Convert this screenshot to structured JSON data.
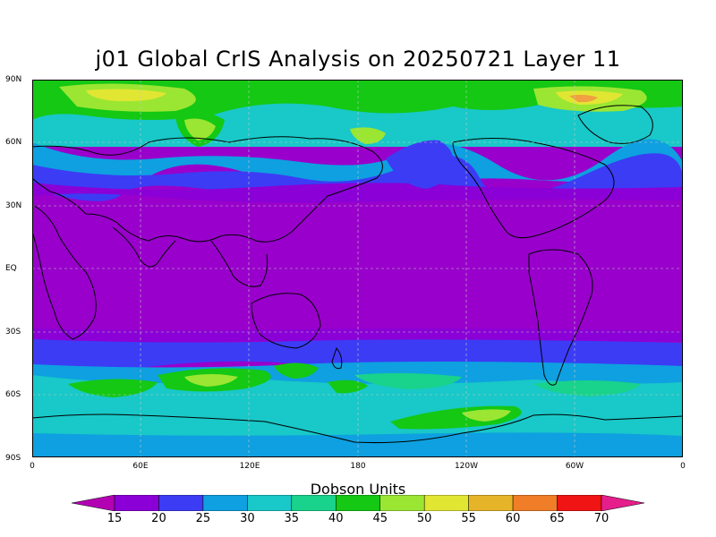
{
  "title": "j01 Global CrIS Analysis on 20250721 Layer 11",
  "lat_labels": [
    "90N",
    "60N",
    "30N",
    "EQ",
    "30S",
    "60S",
    "90S"
  ],
  "lon_labels": [
    "0",
    "60E",
    "120E",
    "180",
    "120W",
    "60W",
    "0"
  ],
  "colorbar": {
    "title": "Dobson Units",
    "ticks": [
      "15",
      "20",
      "25",
      "30",
      "35",
      "40",
      "45",
      "50",
      "55",
      "60",
      "65",
      "70"
    ],
    "colors": [
      "#b300b3",
      "#8a00d6",
      "#3c3cf5",
      "#0ea0e0",
      "#19c8c8",
      "#19d28c",
      "#14c814",
      "#9be632",
      "#e1e632",
      "#e6b428",
      "#f07d28",
      "#f01414",
      "#e61e8c"
    ]
  },
  "layer_colors": {
    "low": "#9900cc",
    "mid_low": "#3c3cf5",
    "mid": "#0ea0e0",
    "cyan": "#19c8c8",
    "teal": "#19d28c",
    "green": "#14c814",
    "lime": "#9be632",
    "yellow": "#e1e632",
    "orange": "#f0a040",
    "coast": "#000000",
    "grid": "#c8c8c8"
  }
}
